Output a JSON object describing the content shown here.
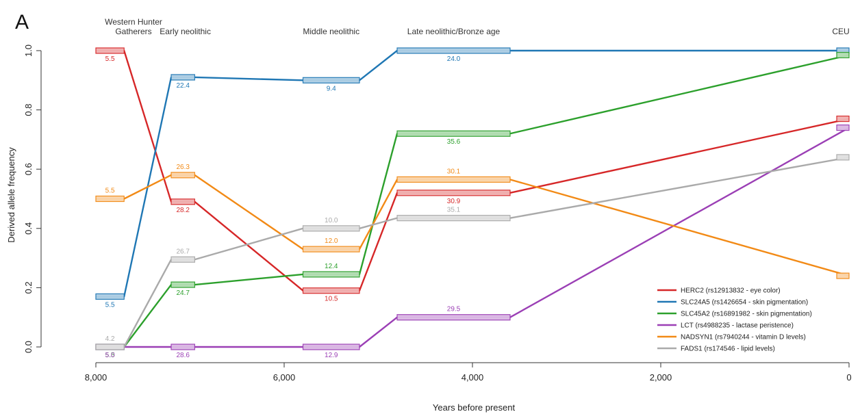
{
  "chart_data": {
    "type": "line",
    "panel_label": "A",
    "xlabel": "Years before present",
    "ylabel": "Derived allele frequency",
    "xlim": [
      8000,
      0
    ],
    "ylim": [
      0,
      1
    ],
    "x_ticks": [
      "8,000",
      "6,000",
      "4,000",
      "2,000",
      "0"
    ],
    "y_ticks": [
      "0.0",
      "0.2",
      "0.4",
      "0.6",
      "0.8",
      "1.0"
    ],
    "periods": [
      {
        "label": [
          "Western Hunter",
          "Gatherers"
        ],
        "x": 7600
      },
      {
        "label": [
          "Early neolithic"
        ],
        "x": 7050
      },
      {
        "label": [
          "Middle neolithic"
        ],
        "x": 5500
      },
      {
        "label": [
          "Late neolithic/Bronze age"
        ],
        "x": 4200
      },
      {
        "label": [
          "CEU"
        ],
        "x": 0
      }
    ],
    "legend_position": "bottom-right",
    "series": [
      {
        "name": "HERC2 (rs12913832 - eye color)",
        "color": "#d62728",
        "segments": [
          {
            "x0": 8000,
            "x1": 7700,
            "y": 1.0,
            "label": "5.5"
          },
          {
            "x0": 7200,
            "x1": 6950,
            "y": 0.49,
            "label": "28.2"
          },
          {
            "x0": 5800,
            "x1": 5200,
            "y": 0.19,
            "label": "10.5"
          },
          {
            "x0": 4800,
            "x1": 3600,
            "y": 0.52,
            "label": "30.9"
          },
          {
            "x0": 0,
            "x1": 0,
            "y": 0.77,
            "label": ""
          }
        ]
      },
      {
        "name": "SLC24A5 (rs1426654 - skin pigmentation)",
        "color": "#1f77b4",
        "segments": [
          {
            "x0": 8000,
            "x1": 7700,
            "y": 0.17,
            "label": "5.5"
          },
          {
            "x0": 7200,
            "x1": 6950,
            "y": 0.91,
            "label": "22.4"
          },
          {
            "x0": 5800,
            "x1": 5200,
            "y": 0.9,
            "label": "9.4"
          },
          {
            "x0": 4800,
            "x1": 3600,
            "y": 1.0,
            "label": "24.0"
          },
          {
            "x0": 0,
            "x1": 0,
            "y": 1.0,
            "label": ""
          }
        ]
      },
      {
        "name": "SLC45A2 (rs16891982 - skin pigmentation)",
        "color": "#2ca02c",
        "segments": [
          {
            "x0": 8000,
            "x1": 7700,
            "y": 0.0,
            "label": "5.5"
          },
          {
            "x0": 7200,
            "x1": 6950,
            "y": 0.21,
            "label": "24.7"
          },
          {
            "x0": 5800,
            "x1": 5200,
            "y": 0.245,
            "label": "12.4"
          },
          {
            "x0": 4800,
            "x1": 3600,
            "y": 0.72,
            "label": "35.6"
          },
          {
            "x0": 0,
            "x1": 0,
            "y": 0.985,
            "label": ""
          }
        ]
      },
      {
        "name": "LCT (rs4988235 - lactase peristence)",
        "color": "#9b3fb5",
        "segments": [
          {
            "x0": 8000,
            "x1": 7700,
            "y": 0.0,
            "label": "5.0"
          },
          {
            "x0": 7200,
            "x1": 6950,
            "y": 0.0,
            "label": "28.6"
          },
          {
            "x0": 5800,
            "x1": 5200,
            "y": 0.0,
            "label": "12.9"
          },
          {
            "x0": 4800,
            "x1": 3600,
            "y": 0.1,
            "label": "29.5"
          },
          {
            "x0": 0,
            "x1": 0,
            "y": 0.74,
            "label": ""
          }
        ]
      },
      {
        "name": "NADSYN1 (rs7940244 - vitamin D levels)",
        "color": "#f28a16",
        "segments": [
          {
            "x0": 8000,
            "x1": 7700,
            "y": 0.5,
            "label": "5.5"
          },
          {
            "x0": 7200,
            "x1": 6950,
            "y": 0.58,
            "label": "26.3"
          },
          {
            "x0": 5800,
            "x1": 5200,
            "y": 0.33,
            "label": "12.0"
          },
          {
            "x0": 4800,
            "x1": 3600,
            "y": 0.565,
            "label": "30.1"
          },
          {
            "x0": 0,
            "x1": 0,
            "y": 0.24,
            "label": ""
          }
        ]
      },
      {
        "name": "FADS1 (rs174546 - lipid levels)",
        "color": "#aaaaaa",
        "segments": [
          {
            "x0": 8000,
            "x1": 7700,
            "y": 0.0,
            "label": "4.2"
          },
          {
            "x0": 7200,
            "x1": 6950,
            "y": 0.295,
            "label": "26.7"
          },
          {
            "x0": 5800,
            "x1": 5200,
            "y": 0.4,
            "label": "10.0"
          },
          {
            "x0": 4800,
            "x1": 3600,
            "y": 0.435,
            "label": "35.1"
          },
          {
            "x0": 0,
            "x1": 0,
            "y": 0.64,
            "label": ""
          }
        ]
      }
    ]
  }
}
